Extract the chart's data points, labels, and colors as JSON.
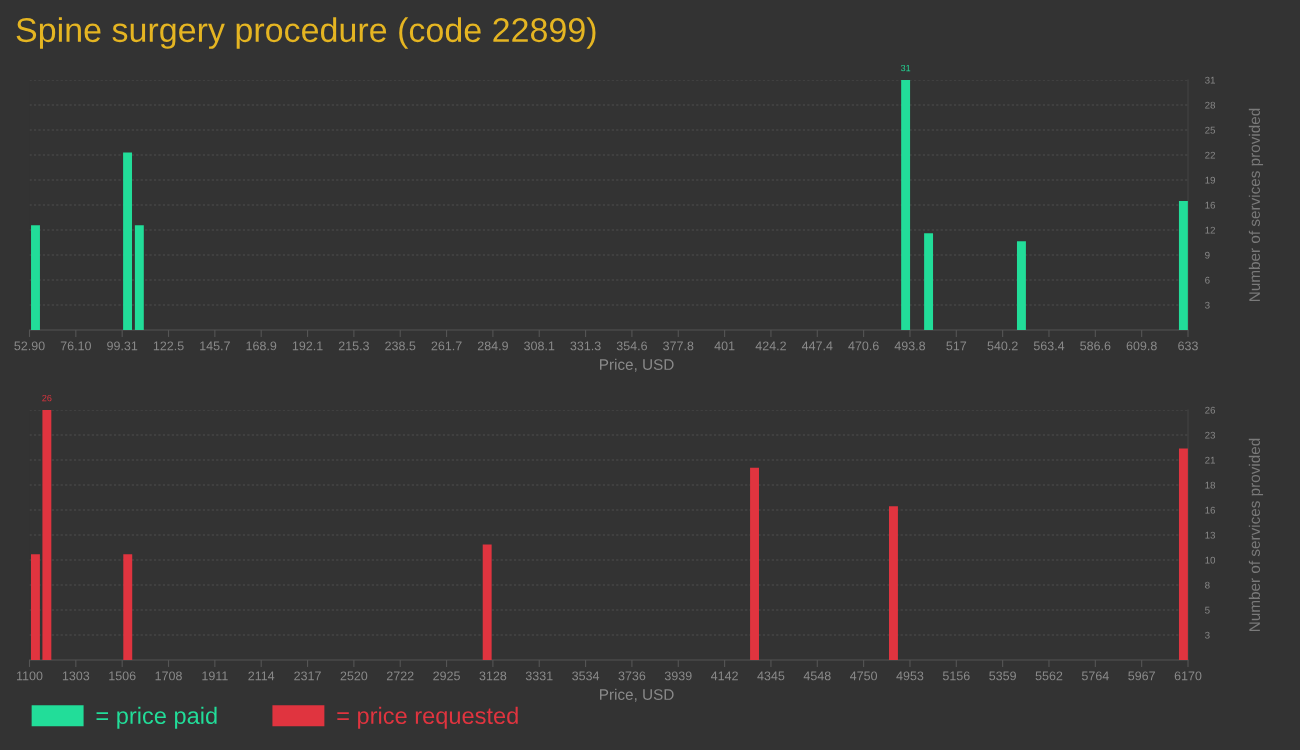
{
  "chart_data": [
    {
      "type": "bar",
      "title": "Spine surgery procedure (code 22899)",
      "xlabel": "Price, USD",
      "ylabel": "Number of services provided",
      "x": [
        55.9,
        102.0,
        107.9,
        491.6,
        503.1,
        549.6,
        630.7
      ],
      "series": [
        {
          "name": "= price paid",
          "color": "#22dd99",
          "values": [
            13,
            22,
            13,
            31,
            12,
            11,
            16
          ],
          "value_labels": [
            null,
            null,
            null,
            "31",
            null,
            null,
            null
          ]
        }
      ],
      "xlim": [
        52.9,
        633
      ],
      "xticks": [
        {
          "value": 52.9,
          "label": "52.90"
        },
        {
          "value": 76.104,
          "label": "76.10"
        },
        {
          "value": 99.308,
          "label": "99.31"
        },
        {
          "value": 122.512,
          "label": "122.5"
        },
        {
          "value": 145.716,
          "label": "145.7"
        },
        {
          "value": 168.92,
          "label": "168.9"
        },
        {
          "value": 192.124,
          "label": "192.1"
        },
        {
          "value": 215.328,
          "label": "215.3"
        },
        {
          "value": 238.532,
          "label": "238.5"
        },
        {
          "value": 261.736,
          "label": "261.7"
        },
        {
          "value": 284.94,
          "label": "284.9"
        },
        {
          "value": 308.144,
          "label": "308.1"
        },
        {
          "value": 331.348,
          "label": "331.3"
        },
        {
          "value": 354.552,
          "label": "354.6"
        },
        {
          "value": 377.756,
          "label": "377.8"
        },
        {
          "value": 400.96,
          "label": "401"
        },
        {
          "value": 424.164,
          "label": "424.2"
        },
        {
          "value": 447.368,
          "label": "447.4"
        },
        {
          "value": 470.572,
          "label": "470.6"
        },
        {
          "value": 493.776,
          "label": "493.8"
        },
        {
          "value": 516.98,
          "label": "517"
        },
        {
          "value": 540.184,
          "label": "540.2"
        },
        {
          "value": 563.388,
          "label": "563.4"
        },
        {
          "value": 586.592,
          "label": "586.6"
        },
        {
          "value": 609.796,
          "label": "609.8"
        },
        633
      ],
      "ylim": [
        0,
        31
      ],
      "yticks": [
        {
          "value": 3.1,
          "label": "3"
        },
        {
          "value": 6.2,
          "label": "6"
        },
        {
          "value": 9.3,
          "label": "9"
        },
        {
          "value": 12.4,
          "label": "12"
        },
        {
          "value": 15.5,
          "label": "16"
        },
        {
          "value": 18.6,
          "label": "19"
        },
        {
          "value": 21.7,
          "label": "22"
        },
        {
          "value": 24.8,
          "label": "25"
        },
        {
          "value": 27.9,
          "label": "28"
        },
        31
      ],
      "grid": "y",
      "legend": "bottom left"
    },
    {
      "type": "bar",
      "xlabel": "Price, USD",
      "ylabel": "Number of services provided",
      "x": [
        1126,
        1176,
        1530,
        3103,
        4273,
        4881,
        6150
      ],
      "series": [
        {
          "name": "= price requested",
          "color": "#e0343f",
          "values": [
            11,
            26,
            11,
            12,
            20,
            16,
            22
          ],
          "value_labels": [
            null,
            "26",
            null,
            null,
            null,
            null,
            null
          ]
        }
      ],
      "xlim": [
        1100,
        6170
      ],
      "xticks": [
        1100,
        {
          "value": 1302.8,
          "label": "1303"
        },
        {
          "value": 1505.6,
          "label": "1506"
        },
        {
          "value": 1708.4,
          "label": "1708"
        },
        {
          "value": 1911.2,
          "label": "1911"
        },
        2114,
        {
          "value": 2316.8,
          "label": "2317"
        },
        {
          "value": 2519.6,
          "label": "2520"
        },
        {
          "value": 2722.4,
          "label": "2722"
        },
        {
          "value": 2925.2,
          "label": "2925"
        },
        3128,
        {
          "value": 3330.8,
          "label": "3331"
        },
        {
          "value": 3533.6,
          "label": "3534"
        },
        {
          "value": 3736.4,
          "label": "3736"
        },
        {
          "value": 3939.2,
          "label": "3939"
        },
        4142,
        {
          "value": 4344.8,
          "label": "4345"
        },
        {
          "value": 4547.6,
          "label": "4548"
        },
        {
          "value": 4750.4,
          "label": "4750"
        },
        {
          "value": 4953.2,
          "label": "4953"
        },
        5156,
        {
          "value": 5358.8,
          "label": "5359"
        },
        {
          "value": 5561.6,
          "label": "5562"
        },
        {
          "value": 5764.4,
          "label": "5764"
        },
        {
          "value": 5967.2,
          "label": "5967"
        },
        6170
      ],
      "ylim": [
        0,
        26
      ],
      "yticks": [
        {
          "value": 2.6,
          "label": "3"
        },
        {
          "value": 5.2,
          "label": "5"
        },
        {
          "value": 7.8,
          "label": "8"
        },
        {
          "value": 10.4,
          "label": "10"
        },
        13,
        {
          "value": 15.6,
          "label": "16"
        },
        {
          "value": 18.2,
          "label": "18"
        },
        {
          "value": 20.8,
          "label": "21"
        },
        {
          "value": 23.4,
          "label": "23"
        },
        26
      ],
      "grid": "y",
      "legend": "bottom left"
    }
  ]
}
